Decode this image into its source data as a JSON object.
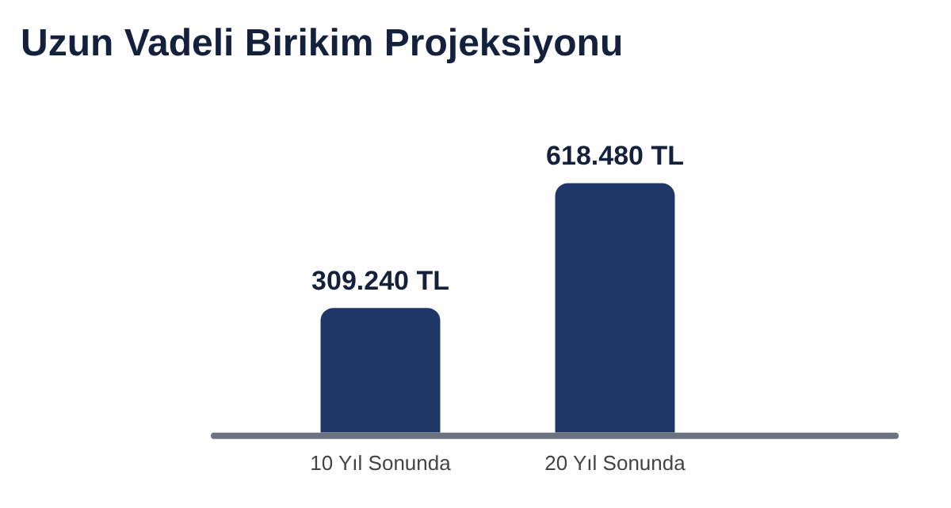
{
  "chart_data": {
    "type": "bar",
    "title": "Uzun Vadeli Birikim Projeksiyonu",
    "categories": [
      "10 Yıl Sonunda",
      "20 Yıl Sonunda"
    ],
    "values": [
      309240,
      618480
    ],
    "value_labels": [
      "309.240 TL",
      "618.480 TL"
    ],
    "color": "#1f3766",
    "grid": false,
    "legend": false
  }
}
